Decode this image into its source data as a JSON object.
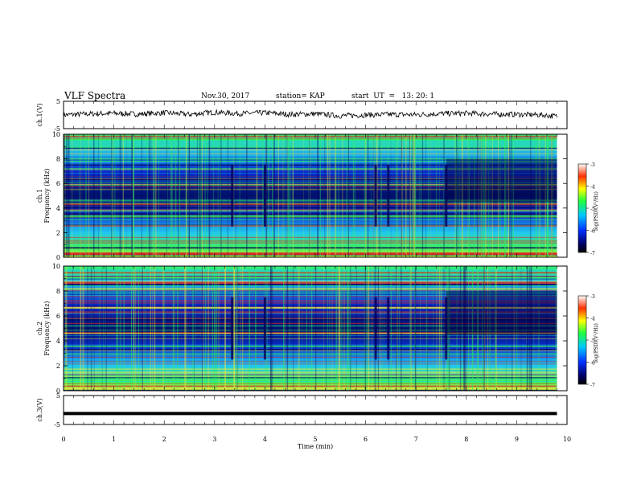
{
  "header": {
    "title": "VLF Spectra",
    "date": "Nov.30, 2017",
    "station": "station= KAP",
    "start_ut": "start  UT  =   13: 20: 1"
  },
  "chart_data": [
    {
      "type": "line",
      "panel": "ch1-waveform",
      "ylabel": "ch.1(V)",
      "ylim": [
        -5,
        5
      ],
      "y_tick_labels": [
        "-5",
        "5"
      ],
      "xlim": [
        0,
        10
      ],
      "note_series": "noisy trace around 0 V, amplitude roughly ±1.5 V",
      "x": [
        0,
        0.5,
        1.0,
        1.5,
        2.0,
        2.5,
        3.0,
        3.5,
        4.0,
        4.5,
        5.0,
        5.5,
        6.0,
        6.5,
        7.0,
        7.5,
        8.0,
        8.5,
        9.0,
        9.5,
        9.8
      ],
      "y": [
        0.0,
        0.4,
        0.6,
        0.3,
        0.8,
        0.2,
        1.0,
        0.5,
        0.8,
        0.2,
        0.4,
        -0.3,
        0.0,
        0.2,
        0.1,
        0.5,
        0.6,
        0.3,
        0.2,
        0.0,
        -0.5
      ]
    },
    {
      "type": "heatmap",
      "panel": "ch1-spectrogram",
      "ylabel": "ch.1\nFrequency (kHz)",
      "ylim": [
        0,
        10
      ],
      "y_tick_labels": [
        "0",
        "2",
        "4",
        "6",
        "8",
        "10"
      ],
      "xlim": [
        0,
        10
      ],
      "colorbar": {
        "label": "log(PSD)(V²/Hz)",
        "ticks": [
          "-3",
          "-4",
          "-5",
          "-6",
          "-7"
        ],
        "range": [
          -7,
          -3
        ]
      },
      "segments_min": [
        3.35,
        4.0,
        6.2,
        6.45,
        7.6
      ]
    },
    {
      "type": "heatmap",
      "panel": "ch2-spectrogram",
      "ylabel": "ch.2\nFrequency (kHz)",
      "ylim": [
        0,
        10
      ],
      "y_tick_labels": [
        "0",
        "2",
        "4",
        "6",
        "8",
        "10"
      ],
      "xlim": [
        0,
        10
      ],
      "colorbar": {
        "label": "log(PSD)(V²/Hz)",
        "ticks": [
          "-3",
          "-4",
          "-5",
          "-6",
          "-7"
        ],
        "range": [
          -7,
          -3
        ]
      },
      "segments_min": [
        3.35,
        4.0,
        6.2,
        6.45,
        7.6
      ]
    },
    {
      "type": "line",
      "panel": "ch3-waveform",
      "ylabel": "ch.3(V)",
      "ylim": [
        -5,
        5
      ],
      "y_tick_labels": [
        "-5",
        "5"
      ],
      "xlim": [
        0,
        10
      ],
      "x": [
        0,
        9.8
      ],
      "y": [
        -1.2,
        -1.2
      ]
    }
  ],
  "x_axis": {
    "label": "Time  (min)",
    "tick_labels": [
      "0",
      "1",
      "2",
      "3",
      "4",
      "5",
      "6",
      "7",
      "8",
      "9",
      "10"
    ]
  },
  "colors": {
    "trace": "#000000",
    "spectrogram_bg": "#0a2fd0",
    "deep_blue": "#00005a",
    "cyan": "#20c8f0",
    "green": "#30f060",
    "yellow": "#f0e840",
    "red": "#e02020"
  }
}
